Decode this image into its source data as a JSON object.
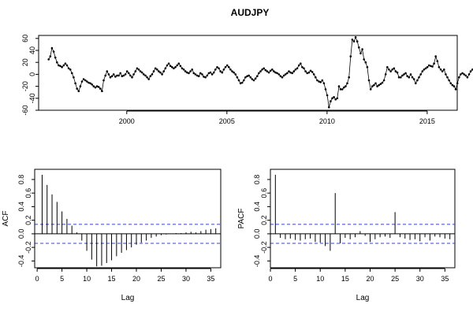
{
  "chart_data": [
    {
      "type": "line",
      "title": "AUDJPY",
      "xlabel": "",
      "ylabel": "",
      "xlim": [
        1995.6,
        2016.5
      ],
      "ylim": [
        -60,
        65
      ],
      "x_ticks": [
        2000,
        2005,
        2010,
        2015
      ],
      "x_tick_labels": [
        "2000",
        "2005",
        "2010",
        "2015"
      ],
      "y_ticks": [
        -60,
        -20,
        20,
        60
      ],
      "y_tick_labels": [
        "-60",
        "-20",
        "20",
        "60"
      ],
      "y_minor_ticks": [
        -40,
        0,
        40
      ],
      "y_minor_tick_labels": [
        "-40",
        "0",
        "40"
      ],
      "start": 1996.1,
      "step": 0.0833,
      "values": [
        25,
        30,
        44,
        38,
        28,
        20,
        15,
        14,
        12,
        15,
        18,
        15,
        10,
        8,
        2,
        -5,
        -15,
        -24,
        -28,
        -20,
        -12,
        -8,
        -10,
        -12,
        -14,
        -15,
        -17,
        -20,
        -22,
        -20,
        -21,
        -24,
        -28,
        -10,
        -2,
        5,
        0,
        -5,
        -3,
        0,
        -4,
        -2,
        -2,
        2,
        -3,
        -2,
        0,
        5,
        2,
        -2,
        -5,
        0,
        5,
        10,
        8,
        5,
        3,
        0,
        -2,
        -5,
        -8,
        -3,
        0,
        5,
        10,
        8,
        5,
        3,
        0,
        5,
        10,
        15,
        18,
        14,
        12,
        10,
        12,
        15,
        18,
        14,
        10,
        8,
        5,
        3,
        2,
        5,
        8,
        2,
        0,
        -2,
        -3,
        2,
        0,
        -4,
        -5,
        -2,
        2,
        3,
        0,
        3,
        8,
        12,
        10,
        5,
        3,
        8,
        12,
        15,
        12,
        8,
        5,
        3,
        0,
        -5,
        -10,
        -15,
        -14,
        -10,
        -5,
        -3,
        -2,
        -5,
        -8,
        -10,
        -7,
        -3,
        2,
        5,
        8,
        10,
        7,
        5,
        3,
        6,
        8,
        5,
        3,
        2,
        0,
        -3,
        -5,
        -2,
        0,
        2,
        5,
        3,
        2,
        5,
        8,
        10,
        15,
        18,
        12,
        10,
        5,
        2,
        3,
        6,
        4,
        0,
        -5,
        -10,
        -12,
        -13,
        -10,
        -15,
        -25,
        -35,
        -55,
        -45,
        -40,
        -38,
        -42,
        -40,
        -20,
        -25,
        -25,
        -22,
        -20,
        -15,
        -5,
        30,
        58,
        55,
        62,
        55,
        45,
        35,
        42,
        25,
        20,
        12,
        -10,
        -25,
        -20,
        -18,
        -15,
        -20,
        -18,
        -16,
        -14,
        -10,
        0,
        12,
        8,
        5,
        8,
        10,
        5,
        3,
        -5,
        -5,
        -2,
        0,
        2,
        -3,
        -5,
        0,
        -5,
        -8,
        -15,
        -10,
        -5,
        0,
        5,
        8,
        10,
        12,
        15,
        14,
        13,
        18,
        30,
        22,
        12,
        8,
        5,
        8,
        0,
        -5,
        -10,
        -15,
        -18,
        -20,
        -25,
        -15,
        -5,
        0,
        2,
        0,
        -2,
        -5,
        0,
        5,
        8,
        6,
        5
      ]
    },
    {
      "type": "bar",
      "xlabel": "Lag",
      "ylabel": "ACF",
      "xlim": [
        -0.5,
        37
      ],
      "ylim": [
        -0.5,
        0.95
      ],
      "x_ticks": [
        0,
        5,
        10,
        15,
        20,
        25,
        30,
        35
      ],
      "x_tick_labels": [
        "0",
        "5",
        "10",
        "15",
        "20",
        "25",
        "30",
        "35"
      ],
      "y_ticks": [
        -0.4,
        0.0,
        0.4,
        0.8
      ],
      "y_tick_labels": [
        "-0.4",
        "0.0",
        "0.4",
        "0.8"
      ],
      "y_minor_ticks": [
        -0.2,
        0.2,
        0.6
      ],
      "y_minor_tick_labels": [
        "-0.2",
        "0.2",
        "0.6"
      ],
      "conf_band": [
        0.14,
        -0.14
      ],
      "lags": [
        1,
        2,
        3,
        4,
        5,
        6,
        7,
        8,
        9,
        10,
        11,
        12,
        13,
        14,
        15,
        16,
        17,
        18,
        19,
        20,
        21,
        22,
        23,
        24,
        25,
        26,
        27,
        28,
        29,
        30,
        31,
        32,
        33,
        34,
        35,
        36
      ],
      "values": [
        0.87,
        0.72,
        0.58,
        0.47,
        0.33,
        0.22,
        0.12,
        0.02,
        -0.1,
        -0.25,
        -0.38,
        -0.48,
        -0.47,
        -0.43,
        -0.39,
        -0.33,
        -0.28,
        -0.24,
        -0.2,
        -0.16,
        -0.13,
        -0.1,
        -0.06,
        -0.04,
        -0.02,
        -0.01,
        0.0,
        0.01,
        0.01,
        0.02,
        0.03,
        0.02,
        0.04,
        0.06,
        0.07,
        0.08
      ]
    },
    {
      "type": "bar",
      "xlabel": "Lag",
      "ylabel": "PACF",
      "xlim": [
        0,
        37
      ],
      "ylim": [
        -0.5,
        0.95
      ],
      "x_ticks": [
        0,
        5,
        10,
        15,
        20,
        25,
        30,
        35
      ],
      "x_tick_labels": [
        "0",
        "5",
        "10",
        "15",
        "20",
        "25",
        "30",
        "35"
      ],
      "y_ticks": [
        -0.4,
        0.0,
        0.4,
        0.8
      ],
      "y_tick_labels": [
        "-0.4",
        "0.0",
        "0.4",
        "0.8"
      ],
      "y_minor_ticks": [
        -0.2,
        0.2,
        0.6
      ],
      "y_minor_tick_labels": [
        "-0.2",
        "0.2",
        "0.6"
      ],
      "conf_band": [
        0.14,
        -0.14
      ],
      "lags": [
        1,
        2,
        3,
        4,
        5,
        6,
        7,
        8,
        9,
        10,
        11,
        12,
        13,
        14,
        15,
        16,
        17,
        18,
        19,
        20,
        21,
        22,
        23,
        24,
        25,
        26,
        27,
        28,
        29,
        30,
        31,
        32,
        33,
        34,
        35,
        36
      ],
      "values": [
        0.87,
        -0.06,
        -0.08,
        -0.07,
        -0.09,
        -0.1,
        -0.08,
        -0.07,
        -0.12,
        -0.13,
        -0.18,
        -0.25,
        0.6,
        -0.14,
        -0.06,
        -0.08,
        -0.05,
        0.04,
        -0.03,
        -0.12,
        -0.08,
        -0.05,
        -0.04,
        -0.06,
        0.32,
        -0.05,
        -0.07,
        -0.09,
        -0.08,
        -0.11,
        -0.05,
        -0.1,
        -0.04,
        -0.05,
        -0.07,
        -0.08
      ]
    }
  ]
}
